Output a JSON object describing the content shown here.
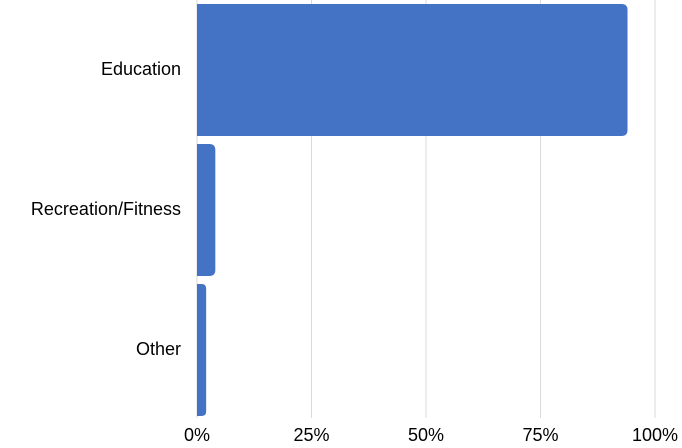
{
  "chart_data": {
    "type": "bar",
    "orientation": "horizontal",
    "title": "",
    "xlabel": "",
    "ylabel": "",
    "categories": [
      "Education",
      "Recreation/Fitness",
      "Other"
    ],
    "values": [
      94,
      4,
      2
    ],
    "unit": "%",
    "xlim": [
      0,
      100
    ],
    "ticks": [
      "0%",
      "25%",
      "50%",
      "75%",
      "100%"
    ],
    "tick_values": [
      0,
      25,
      50,
      75,
      100
    ],
    "grid": true,
    "legend": "none",
    "bar_color": "#4472c4",
    "grid_color": "#d9d9d9"
  }
}
